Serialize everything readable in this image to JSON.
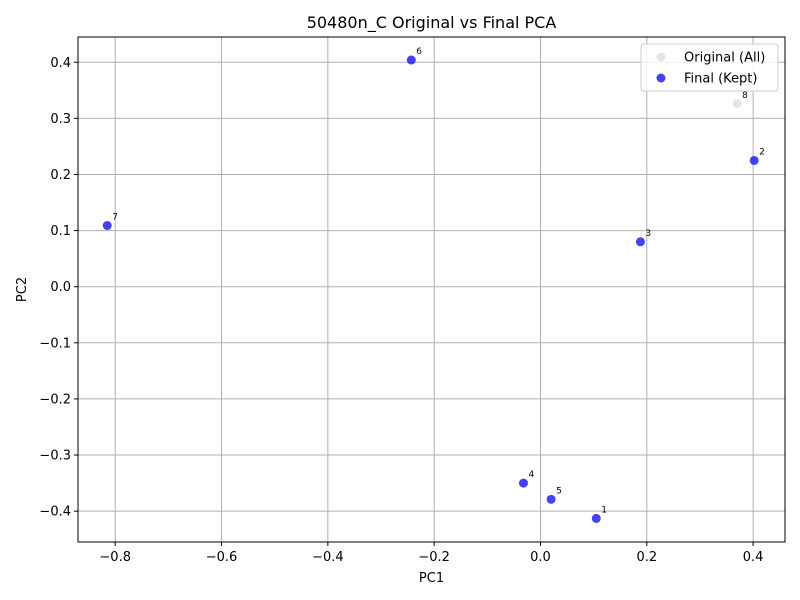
{
  "chart_data": {
    "type": "scatter",
    "title": "50480n_C Original vs Final PCA",
    "xlabel": "PC1",
    "ylabel": "PC2",
    "xlim": [
      -0.87,
      0.46
    ],
    "ylim": [
      -0.455,
      0.445
    ],
    "xticks": [
      -0.8,
      -0.6,
      -0.4,
      -0.2,
      0.0,
      0.2,
      0.4
    ],
    "xtick_labels": [
      "−0.8",
      "−0.6",
      "−0.4",
      "−0.2",
      "0.0",
      "0.2",
      "0.4"
    ],
    "yticks": [
      -0.4,
      -0.3,
      -0.2,
      -0.1,
      0.0,
      0.1,
      0.2,
      0.3,
      0.4
    ],
    "ytick_labels": [
      "−0.4",
      "−0.3",
      "−0.2",
      "−0.1",
      "0.0",
      "0.1",
      "0.2",
      "0.3",
      "0.4"
    ],
    "grid": true,
    "legend_position": "top-right",
    "series": [
      {
        "name": "Original (All)",
        "color": "#e0e0e0",
        "points": [
          {
            "label": "8",
            "x": 0.37,
            "y": 0.326
          }
        ]
      },
      {
        "name": "Final (Kept)",
        "color": "#2222ee",
        "points": [
          {
            "label": "1",
            "x": 0.105,
            "y": -0.413
          },
          {
            "label": "2",
            "x": 0.402,
            "y": 0.225
          },
          {
            "label": "3",
            "x": 0.188,
            "y": 0.08
          },
          {
            "label": "4",
            "x": -0.032,
            "y": -0.35
          },
          {
            "label": "5",
            "x": 0.02,
            "y": -0.379
          },
          {
            "label": "6",
            "x": -0.243,
            "y": 0.404
          },
          {
            "label": "7",
            "x": -0.815,
            "y": 0.109
          }
        ]
      }
    ]
  }
}
